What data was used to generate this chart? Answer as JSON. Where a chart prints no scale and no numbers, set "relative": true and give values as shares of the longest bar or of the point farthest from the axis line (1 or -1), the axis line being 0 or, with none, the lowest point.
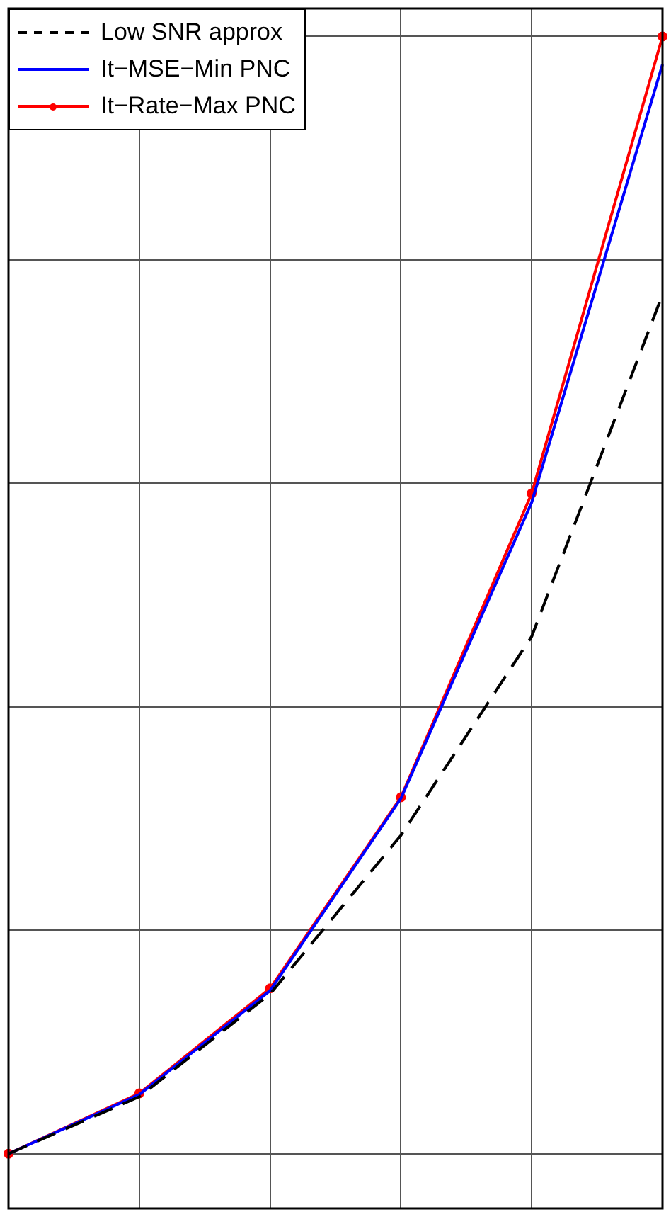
{
  "chart_data": {
    "type": "line",
    "relative": true,
    "categories": [
      null,
      null,
      null,
      null,
      null,
      null
    ],
    "series": [
      {
        "name": "Low SNR approx",
        "color": "#000000",
        "line_style": "dashed",
        "marker": "none",
        "values": [
          0,
          0.051,
          0.143,
          0.285,
          0.463,
          0.769
        ]
      },
      {
        "name": "It−MSE−Min PNC",
        "color": "#0000ff",
        "line_style": "solid",
        "marker": "none",
        "values": [
          0,
          0.053,
          0.146,
          0.318,
          0.583,
          0.975
        ]
      },
      {
        "name": "It−Rate−Max PNC",
        "color": "#ff0000",
        "line_style": "solid",
        "marker": "circle",
        "values": [
          0,
          0.054,
          0.148,
          0.319,
          0.591,
          1
        ]
      }
    ],
    "grid": true,
    "legend": "top left",
    "tick_labels": false
  }
}
